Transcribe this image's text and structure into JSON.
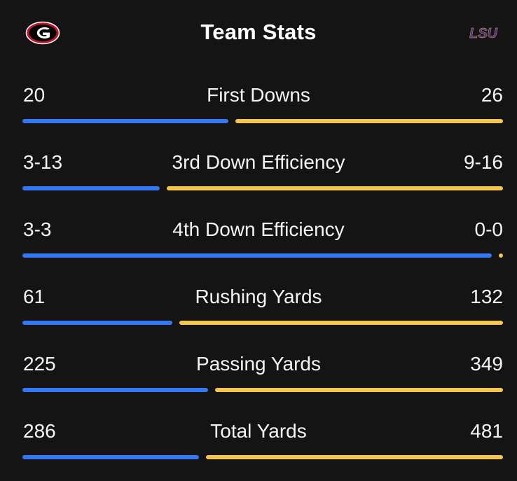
{
  "header": {
    "title": "Team Stats",
    "home_logo_icon": "georgia-g-logo-icon",
    "away_logo_icon": "lsu-logo-icon",
    "away_logo_text": "LSU"
  },
  "colors": {
    "home_bar": "#3478f6",
    "away_bar": "#f6c54e",
    "background": "#141414",
    "home_logo_red": "#c8102e",
    "away_logo_purple": "#461d7c"
  },
  "stats": [
    {
      "label": "First Downs",
      "home": "20",
      "away": "26",
      "home_share": 0.435
    },
    {
      "label": "3rd Down Efficiency",
      "home": "3-13",
      "away": "9-16",
      "home_share": 0.29
    },
    {
      "label": "4th Down Efficiency",
      "home": "3-3",
      "away": "0-0",
      "home_share": 1.0
    },
    {
      "label": "Rushing Yards",
      "home": "61",
      "away": "132",
      "home_share": 0.316
    },
    {
      "label": "Passing Yards",
      "home": "225",
      "away": "349",
      "home_share": 0.392
    },
    {
      "label": "Total Yards",
      "home": "286",
      "away": "481",
      "home_share": 0.373
    }
  ]
}
